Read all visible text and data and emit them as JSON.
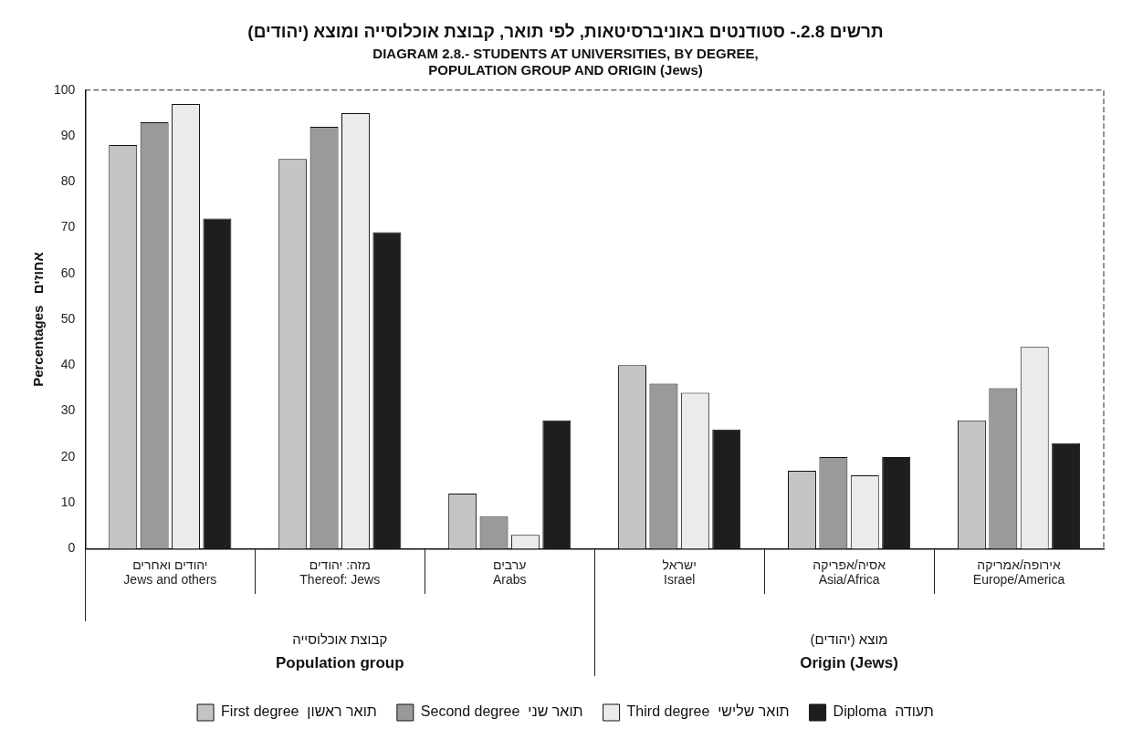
{
  "chart_data": {
    "type": "bar",
    "title": "תרשים 2.8.- סטודנטים באוניברסיטאות, לפי תואר, קבוצת אוכלוסייה ומוצא (יהודים)",
    "subtitle": "DIAGRAM 2.8.- STUDENTS AT UNIVERSITIES, BY DEGREE,\nPOPULATION GROUP AND ORIGIN (Jews)",
    "ylabel": "Percentages   אחוזים",
    "categories": [
      "יהודים ואחרים\nJews and others",
      "מזה: יהודים\nThereof: Jews",
      "ערבים\nArabs",
      "ישראל\nIsrael",
      "אסיה/אפריקה\nAsia/Africa",
      "אירופה/אמריקה\nEurope/America"
    ],
    "series": [
      {
        "name": "First degree  תואר ראשון",
        "color": "#c4c4c4",
        "values": [
          88,
          85,
          12,
          40,
          17,
          28
        ]
      },
      {
        "name": "Second degree  תואר שני",
        "color": "#9a9a9a",
        "values": [
          93,
          92,
          7,
          36,
          20,
          35
        ]
      },
      {
        "name": "Third degree  תואר שלישי",
        "color": "#ebebeb",
        "values": [
          97,
          95,
          3,
          34,
          16,
          44
        ]
      },
      {
        "name": "Diploma  תעודה",
        "color": "#1e1e1e",
        "values": [
          72,
          69,
          28,
          26,
          20,
          23
        ]
      }
    ],
    "ylim": [
      0,
      100
    ],
    "yticks": [
      0,
      10,
      20,
      30,
      40,
      50,
      60,
      70,
      80,
      90,
      100
    ],
    "annotations": [
      "קבוצת אוכלוסייה\nPopulation group",
      "מוצא (יהודים)\nOrigin (Jews)"
    ],
    "grid": false,
    "legend": "bottom"
  }
}
